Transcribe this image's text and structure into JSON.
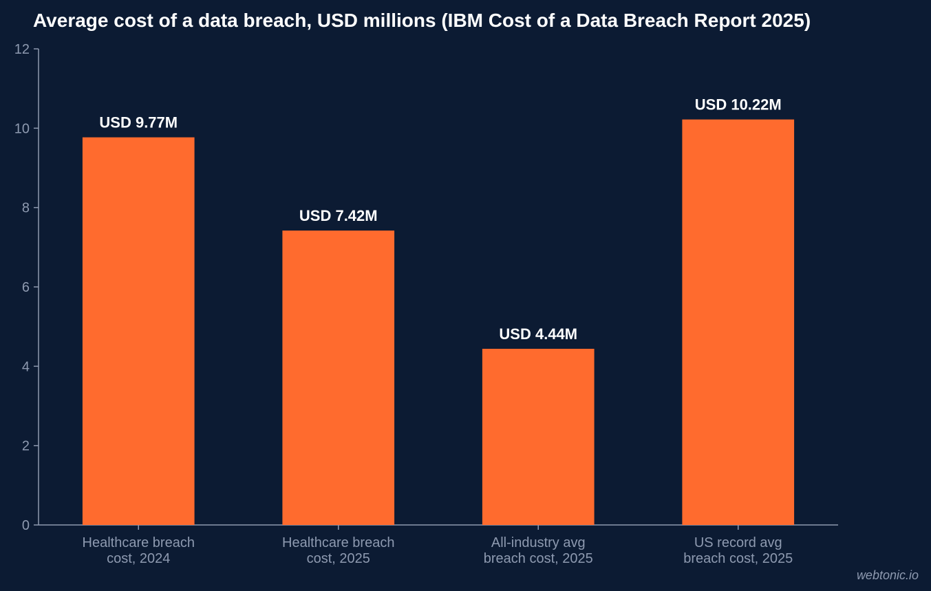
{
  "chart_data": {
    "type": "bar",
    "title": "Average cost of a data breach, USD millions (IBM Cost of a Data Breach Report 2025)",
    "categories": [
      [
        "Healthcare breach",
        "cost, 2024"
      ],
      [
        "Healthcare breach",
        "cost, 2025"
      ],
      [
        "All-industry avg",
        "breach cost, 2025"
      ],
      [
        "US record avg",
        "breach cost, 2025"
      ]
    ],
    "values": [
      9.77,
      7.42,
      4.44,
      10.22
    ],
    "data_labels": [
      "USD 9.77M",
      "USD 7.42M",
      "USD 4.44M",
      "USD 10.22M"
    ],
    "ylim": [
      0,
      12
    ],
    "yticks": [
      0,
      2,
      4,
      6,
      8,
      10,
      12
    ],
    "xlabel": "",
    "ylabel": "",
    "grid": false,
    "bar_color": "#ff6b2e",
    "axis_color": "#8e9ab0",
    "background": "#0c1b33"
  },
  "watermark": "webtonic.io"
}
